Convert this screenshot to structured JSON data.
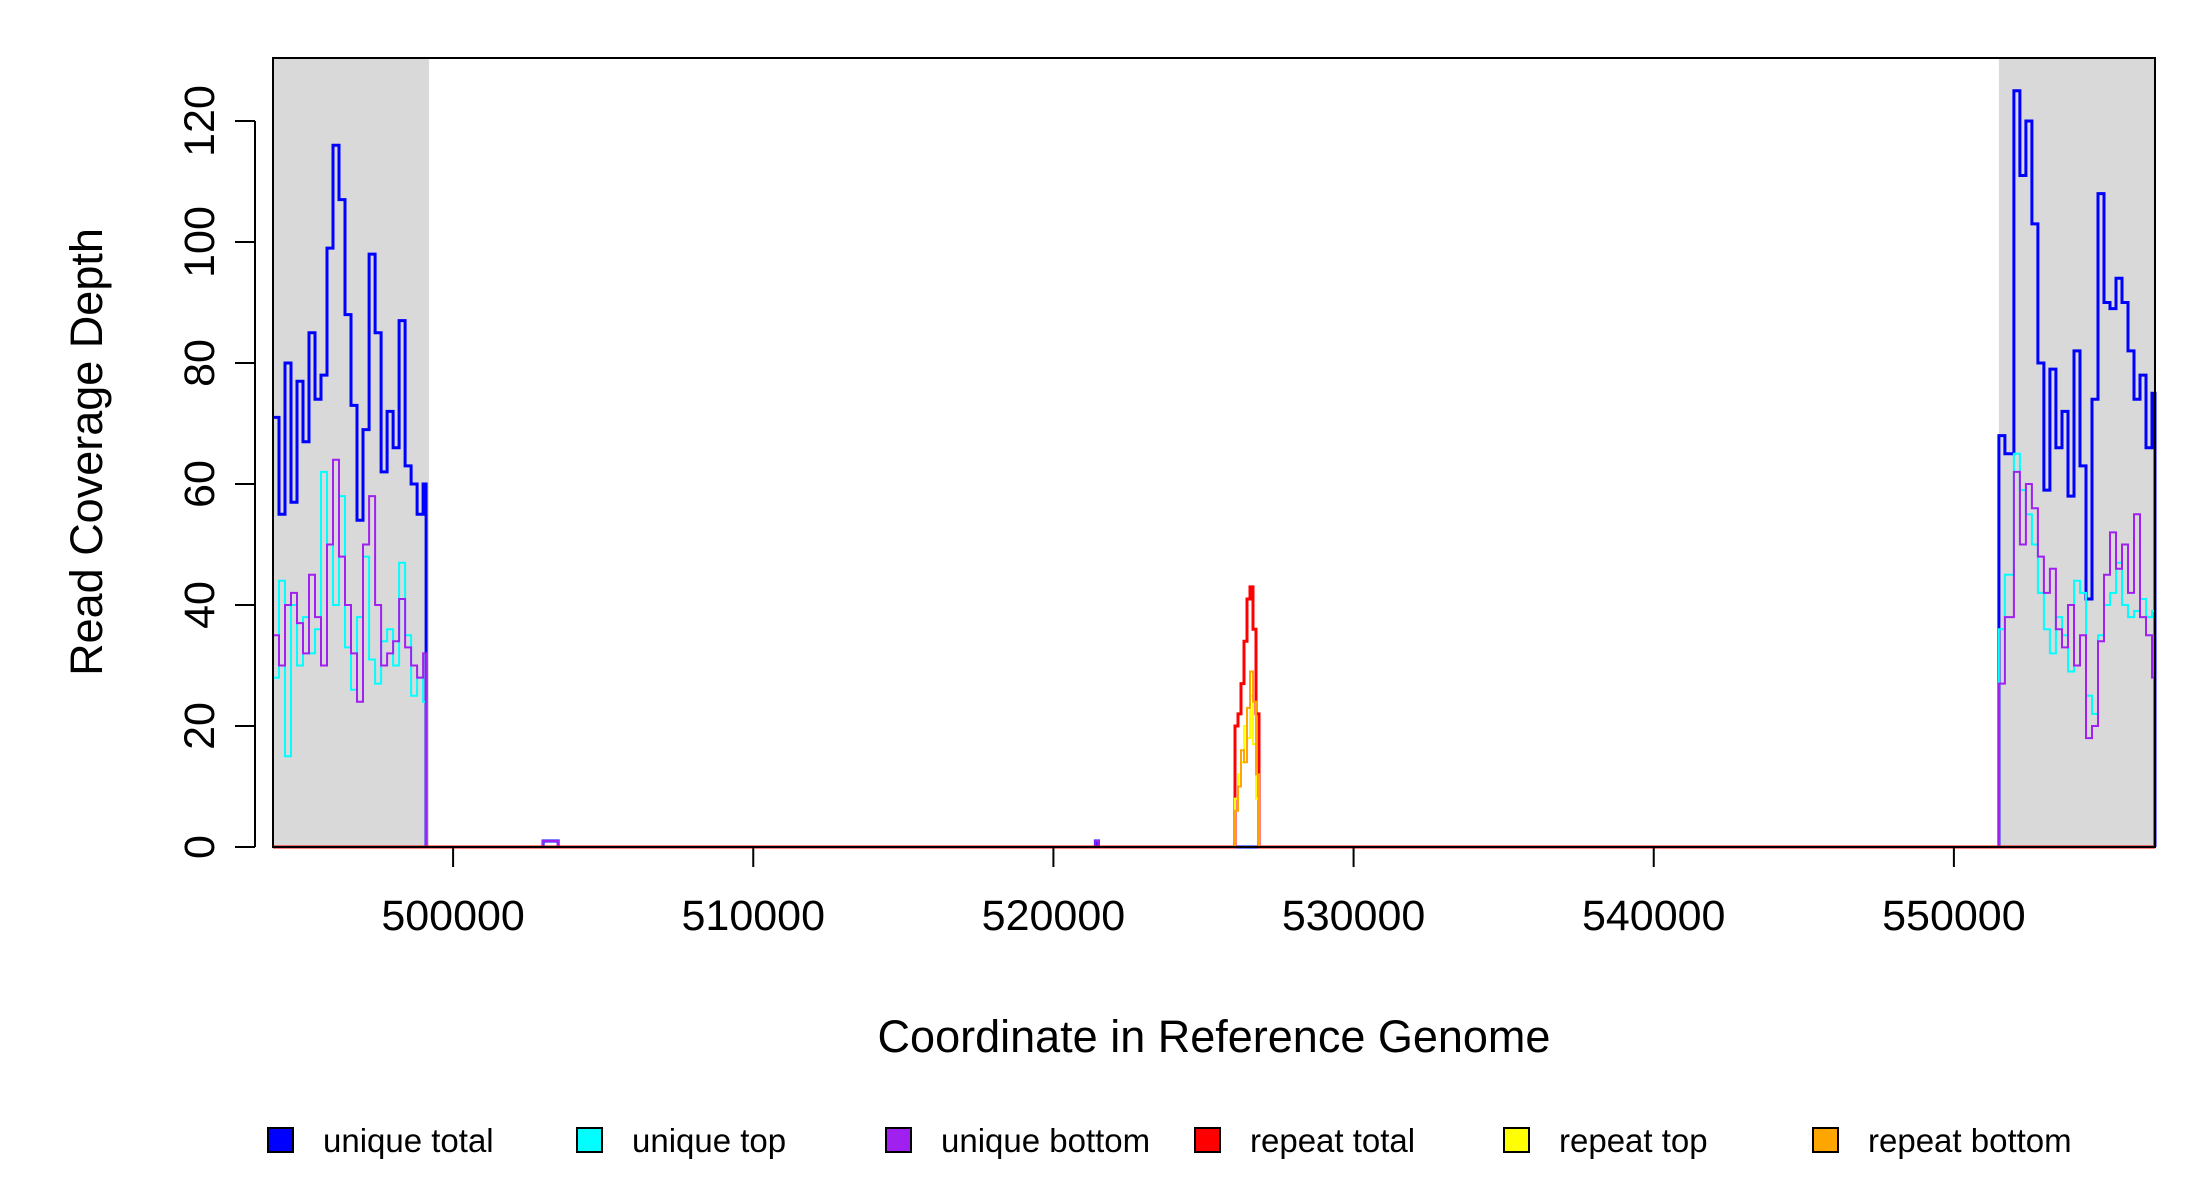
{
  "chart_data": {
    "type": "line",
    "xlabel": "Coordinate in Reference Genome",
    "ylabel": "Read Coverage Depth",
    "xlim": [
      494000,
      556700
    ],
    "ylim": [
      0,
      130
    ],
    "x_ticks": [
      500000,
      510000,
      520000,
      530000,
      540000,
      550000
    ],
    "x_tick_labels": [
      "500000",
      "510000",
      "520000",
      "530000",
      "540000",
      "550000"
    ],
    "y_ticks": [
      0,
      20,
      40,
      60,
      80,
      100,
      120
    ],
    "y_tick_labels": [
      "0",
      "20",
      "40",
      "60",
      "80",
      "100",
      "120"
    ],
    "grid": false,
    "legend_position": "bottom",
    "shaded_regions": [
      {
        "x_start": 494000,
        "x_end": 499200,
        "color": "#d9d9d9"
      },
      {
        "x_start": 551500,
        "x_end": 556700,
        "color": "#d9d9d9"
      }
    ],
    "series": [
      {
        "name": "unique total",
        "color": "#0000ff",
        "stroke": 3,
        "x": [
          494000,
          494200,
          494400,
          494600,
          494800,
          495000,
          495200,
          495400,
          495600,
          495800,
          496000,
          496200,
          496400,
          496600,
          496800,
          497000,
          497200,
          497400,
          497600,
          497800,
          498000,
          498200,
          498400,
          498600,
          498800,
          499000,
          499100,
          499200,
          503000,
          503400,
          503500,
          521000,
          521400,
          521500,
          551400,
          551500,
          551700,
          552000,
          552200,
          552400,
          552600,
          552800,
          553000,
          553200,
          553400,
          553600,
          553800,
          554000,
          554200,
          554400,
          554600,
          554800,
          555000,
          555200,
          555400,
          555600,
          555800,
          556000,
          556200,
          556400,
          556600,
          556700
        ],
        "y": [
          71,
          55,
          80,
          57,
          77,
          67,
          85,
          74,
          78,
          99,
          116,
          107,
          88,
          73,
          54,
          69,
          98,
          85,
          62,
          72,
          66,
          87,
          63,
          60,
          55,
          60,
          0,
          0,
          1,
          1,
          0,
          0,
          1,
          0,
          0,
          68,
          65,
          125,
          111,
          120,
          103,
          80,
          59,
          79,
          66,
          72,
          58,
          82,
          63,
          41,
          74,
          108,
          90,
          89,
          94,
          90,
          82,
          74,
          78,
          66,
          75,
          0
        ]
      },
      {
        "name": "unique top",
        "color": "#00ffff",
        "stroke": 2,
        "x": [
          494000,
          494200,
          494400,
          494600,
          494800,
          495000,
          495200,
          495400,
          495600,
          495800,
          496000,
          496200,
          496400,
          496600,
          496800,
          497000,
          497200,
          497400,
          497600,
          497800,
          498000,
          498200,
          498400,
          498600,
          498800,
          499000,
          499100,
          499200,
          503000,
          503400,
          503500,
          521000,
          521400,
          521500,
          551400,
          551500,
          551700,
          552000,
          552200,
          552400,
          552600,
          552800,
          553000,
          553200,
          553400,
          553600,
          553800,
          554000,
          554200,
          554400,
          554600,
          554800,
          555000,
          555200,
          555400,
          555600,
          555800,
          556000,
          556200,
          556400,
          556600,
          556700
        ],
        "y": [
          28,
          44,
          15,
          40,
          30,
          38,
          32,
          36,
          62,
          50,
          40,
          58,
          33,
          26,
          38,
          48,
          31,
          27,
          34,
          36,
          30,
          47,
          35,
          25,
          28,
          24,
          0,
          0,
          1,
          1,
          0,
          0,
          1,
          0,
          0,
          36,
          45,
          65,
          59,
          55,
          50,
          42,
          36,
          32,
          38,
          35,
          29,
          44,
          42,
          25,
          22,
          35,
          40,
          42,
          47,
          40,
          38,
          39,
          41,
          38,
          39,
          0
        ]
      },
      {
        "name": "unique bottom",
        "color": "#a020f0",
        "stroke": 2,
        "x": [
          494000,
          494200,
          494400,
          494600,
          494800,
          495000,
          495200,
          495400,
          495600,
          495800,
          496000,
          496200,
          496400,
          496600,
          496800,
          497000,
          497200,
          497400,
          497600,
          497800,
          498000,
          498200,
          498400,
          498600,
          498800,
          499000,
          499100,
          499200,
          503000,
          503400,
          503500,
          521000,
          521400,
          521500,
          551400,
          551500,
          551700,
          552000,
          552200,
          552400,
          552600,
          552800,
          553000,
          553200,
          553400,
          553600,
          553800,
          554000,
          554200,
          554400,
          554600,
          554800,
          555000,
          555200,
          555400,
          555600,
          555800,
          556000,
          556200,
          556400,
          556600,
          556700
        ],
        "y": [
          35,
          30,
          40,
          42,
          37,
          32,
          45,
          38,
          30,
          50,
          64,
          48,
          40,
          32,
          24,
          50,
          58,
          40,
          30,
          32,
          34,
          41,
          33,
          30,
          28,
          32,
          0,
          0,
          1,
          1,
          0,
          0,
          1,
          0,
          0,
          27,
          38,
          62,
          50,
          60,
          56,
          48,
          42,
          46,
          36,
          33,
          40,
          30,
          35,
          18,
          20,
          34,
          45,
          52,
          46,
          50,
          42,
          55,
          38,
          35,
          28,
          0
        ]
      },
      {
        "name": "repeat total",
        "color": "#ff0000",
        "stroke": 3,
        "x": [
          494000,
          526000,
          526050,
          526150,
          526250,
          526350,
          526450,
          526550,
          526650,
          526750,
          526850,
          556700
        ],
        "y": [
          0,
          0,
          20,
          22,
          27,
          34,
          41,
          43,
          36,
          22,
          0,
          0
        ]
      },
      {
        "name": "repeat top",
        "color": "#ffff00",
        "stroke": 2,
        "x": [
          494000,
          526000,
          526050,
          526150,
          526250,
          526350,
          526450,
          526550,
          526650,
          526750,
          526850,
          556700
        ],
        "y": [
          0,
          0,
          8,
          12,
          14,
          20,
          18,
          25,
          17,
          8,
          0,
          0
        ]
      },
      {
        "name": "repeat bottom",
        "color": "#ffa500",
        "stroke": 2,
        "x": [
          494000,
          526000,
          526050,
          526150,
          526250,
          526350,
          526450,
          526550,
          526650,
          526750,
          526850,
          556700
        ],
        "y": [
          0,
          0,
          6,
          10,
          16,
          14,
          23,
          29,
          24,
          12,
          0,
          0
        ]
      }
    ],
    "legend": [
      {
        "label": "unique total",
        "color": "#0000ff"
      },
      {
        "label": "unique top",
        "color": "#00ffff"
      },
      {
        "label": "unique bottom",
        "color": "#a020f0"
      },
      {
        "label": "repeat total",
        "color": "#ff0000"
      },
      {
        "label": "repeat top",
        "color": "#ffff00"
      },
      {
        "label": "repeat bottom",
        "color": "#ffa500"
      }
    ]
  }
}
